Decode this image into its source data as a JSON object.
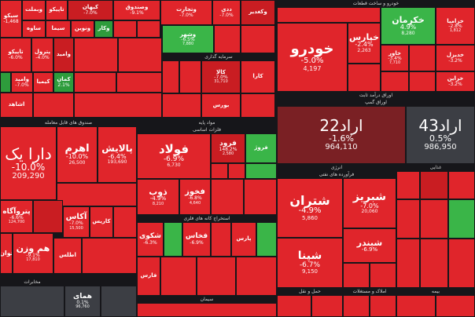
{
  "colors": {
    "down": "#e0252b",
    "deep_down": "#a91a1e",
    "up": "#2e9c3c",
    "neutral": "#3c3e44",
    "background": "#16161a"
  },
  "sectors": {
    "banks": "صندوق های قابل معامله",
    "chemicals": "مواد پایه",
    "auto": "خودرو و ساخت قطعات",
    "bonds": "اوراق درآمد ثابت",
    "bonds_sub": "اوراق گمپ",
    "oil": "فرآورده های نفتی",
    "energy": "انرژی",
    "mining": "استخراج کانه های فلزی",
    "investment": "سرمایه گذاری",
    "metals": "فلزات اساسی",
    "cement": "سیمان",
    "food": "غذایی",
    "transport": "حمل و نقل",
    "realestate": "املاک و مستغلات",
    "insurance": "بیمه",
    "bottom_a": "مخابرات",
    "bottom_b": "شرکت های چند رشته ای"
  },
  "tiles": {
    "khodro": {
      "name": "خودرو",
      "pct": "-5.0%",
      "val": "4,197"
    },
    "khapars": {
      "name": "خپارس",
      "pct": "-2.4%",
      "val": "2,263"
    },
    "khekarman": {
      "name": "خکرمان",
      "pct": "4.9%",
      "val": "8,280"
    },
    "khazar": {
      "name": "خزامیا",
      "pct": "-2.8%",
      "val": "1,812"
    },
    "khavar": {
      "name": "خاور",
      "pct": "-3.4%",
      "val": "7,710"
    },
    "khodibel": {
      "name": "خدیزل",
      "pct": "-3.2%",
      "val": "2,800"
    },
    "kharag": {
      "name": "خراین",
      "pct": "-3.2%",
      "val": ""
    },
    "arad22": {
      "name": "اراد22",
      "pct": "-1.6%",
      "val": "964,110"
    },
    "arad43": {
      "name": "اراد43",
      "pct": "0.5%",
      "val": "986,950"
    },
    "dara": {
      "name": "دارا یک",
      "pct": "-10.0%",
      "val": "209,290"
    },
    "pelaysh": {
      "name": "پالایش",
      "pct": "-6.4%",
      "val": "193,690"
    },
    "ahrom": {
      "name": "اهرم",
      "pct": "-10.0%",
      "val": "26,500"
    },
    "petroagah": {
      "name": "پتروآگاه",
      "pct": "-6.6%",
      "val": "124,700"
    },
    "akas": {
      "name": "آکاس",
      "pct": "-7.0%",
      "val": "15,500"
    },
    "hamvazn": {
      "name": "هم وزن",
      "pct": "-9.1%",
      "val": "17,810"
    },
    "tavan": {
      "name": "توان",
      "pct": "-9.1%",
      "val": ""
    },
    "fulad": {
      "name": "فولاد",
      "pct": "-6.9%",
      "val": "6,730"
    },
    "zob": {
      "name": "ذوب",
      "pct": "-4.9%",
      "val": "8,210"
    },
    "fakhooz": {
      "name": "فخوز",
      "pct": "-6.8%",
      "val": "4,640"
    },
    "foroud": {
      "name": "فرود",
      "pct": "148.2%",
      "val": "2,580"
    },
    "shatran": {
      "name": "شتران",
      "pct": "-4.9%",
      "val": "5,860"
    },
    "shabriz": {
      "name": "شبریز",
      "pct": "-7.0%",
      "val": "20,060"
    },
    "shebandar": {
      "name": "شبندر",
      "pct": "-6.9%",
      "val": ""
    },
    "shepna": {
      "name": "شپنا",
      "pct": "-6.7%",
      "val": "9,150"
    },
    "kegol": {
      "name": "کگل",
      "pct": "-7.0%",
      "val": ""
    },
    "kala": {
      "name": "کالا",
      "pct": "-7.0%",
      "val": "31,710"
    },
    "vtejarat": {
      "name": "وتجارت",
      "pct": "-7.0%",
      "val": ""
    },
    "vshahr": {
      "name": "وشهر",
      "pct": "-6.5%",
      "val": "7,880"
    },
    "ahmai": {
      "name": "همای",
      "pct": "0.1%",
      "val": "96,760"
    },
    "kehan": {
      "name": "کیهان",
      "pct": "-7.0%",
      "val": ""
    },
    "vasapa": {
      "name": "واسپا",
      "pct": "-7.0%",
      "val": ""
    },
    "shakos": {
      "name": "شکوی",
      "pct": "-6.3%",
      "val": ""
    },
    "fakhas": {
      "name": "فخاس",
      "pct": "-6.9%",
      "val": ""
    }
  }
}
